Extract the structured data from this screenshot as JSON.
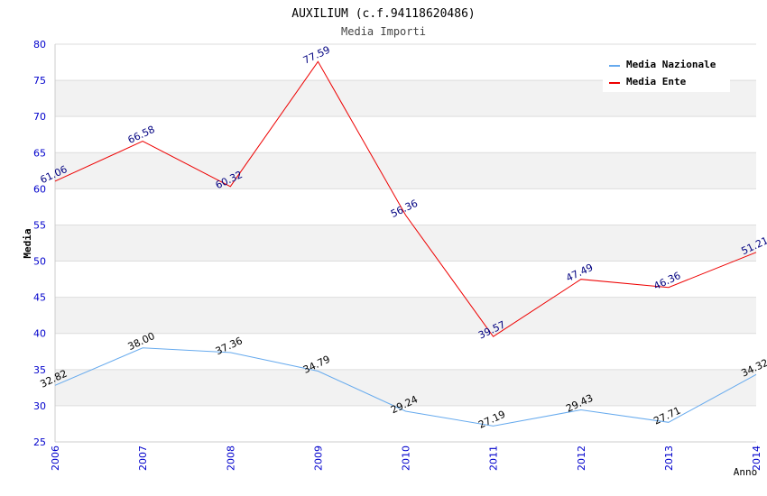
{
  "chart_data": {
    "type": "line",
    "title": "AUXILIUM (c.f.94118620486)",
    "subtitle": "Media Importi",
    "xlabel": "Anno",
    "ylabel": "Media",
    "categories": [
      "2006",
      "2007",
      "2008",
      "2009",
      "2010",
      "2011",
      "2012",
      "2013",
      "2014"
    ],
    "ylim": [
      25,
      80
    ],
    "yticks": [
      "25",
      "30",
      "35",
      "40",
      "45",
      "50",
      "55",
      "60",
      "65",
      "70",
      "75",
      "80"
    ],
    "series": [
      {
        "name": "Media Nazionale",
        "color": "#66aaee",
        "label_color": "#000000",
        "values": [
          32.82,
          38.0,
          37.36,
          34.79,
          29.24,
          27.19,
          29.43,
          27.71,
          34.32
        ],
        "labels": [
          "32.82",
          "38.00",
          "37.36",
          "34.79",
          "29.24",
          "27.19",
          "29.43",
          "27.71",
          "34.32"
        ]
      },
      {
        "name": "Media Ente",
        "color": "#ee0000",
        "label_color": "#000080",
        "values": [
          61.06,
          66.58,
          60.32,
          77.59,
          56.36,
          39.57,
          47.49,
          46.36,
          51.21
        ],
        "labels": [
          "61.06",
          "66.58",
          "60.32",
          "77.59",
          "56.36",
          "39.57",
          "47.49",
          "46.36",
          "51.21"
        ]
      }
    ],
    "legend_position": "top-right",
    "colors": {
      "tick_labels": "#0000cc",
      "band": "#f2f2f2",
      "grid": "#dddddd",
      "axis": "#cccccc"
    }
  }
}
